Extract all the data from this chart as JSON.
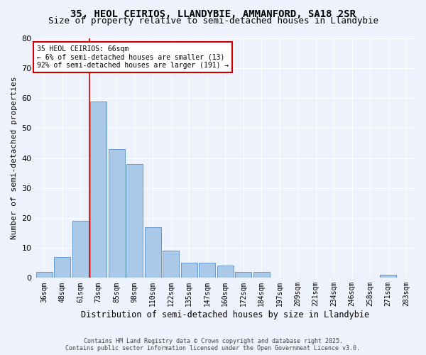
{
  "title1": "35, HEOL CEIRIOS, LLANDYBIE, AMMANFORD, SA18 2SR",
  "title2": "Size of property relative to semi-detached houses in Llandybie",
  "xlabel": "Distribution of semi-detached houses by size in Llandybie",
  "ylabel": "Number of semi-detached properties",
  "annotation_title": "35 HEOL CEIRIOS: 66sqm",
  "annotation_line1": "← 6% of semi-detached houses are smaller (13)",
  "annotation_line2": "92% of semi-detached houses are larger (191) →",
  "footer1": "Contains HM Land Registry data © Crown copyright and database right 2025.",
  "footer2": "Contains public sector information licensed under the Open Government Licence v3.0.",
  "categories": [
    "36sqm",
    "48sqm",
    "61sqm",
    "73sqm",
    "85sqm",
    "98sqm",
    "110sqm",
    "122sqm",
    "135sqm",
    "147sqm",
    "160sqm",
    "172sqm",
    "184sqm",
    "197sqm",
    "209sqm",
    "221sqm",
    "234sqm",
    "246sqm",
    "258sqm",
    "271sqm",
    "283sqm"
  ],
  "values": [
    2,
    7,
    19,
    59,
    43,
    38,
    17,
    9,
    5,
    5,
    4,
    2,
    2,
    0,
    0,
    0,
    0,
    0,
    0,
    1,
    0
  ],
  "bar_color": "#aac8e8",
  "bar_edge_color": "#6699cc",
  "vline_x_index": 2,
  "vline_color": "#cc0000",
  "ylim": [
    0,
    80
  ],
  "yticks": [
    0,
    10,
    20,
    30,
    40,
    50,
    60,
    70,
    80
  ],
  "bg_color": "#eef2fc",
  "grid_color": "#ffffff",
  "annotation_box_color": "#ffffff",
  "annotation_border_color": "#cc0000",
  "title1_fontsize": 10,
  "title2_fontsize": 9,
  "ylabel_fontsize": 8,
  "xlabel_fontsize": 8.5,
  "tick_fontsize": 7,
  "annot_fontsize": 7,
  "footer_fontsize": 6
}
